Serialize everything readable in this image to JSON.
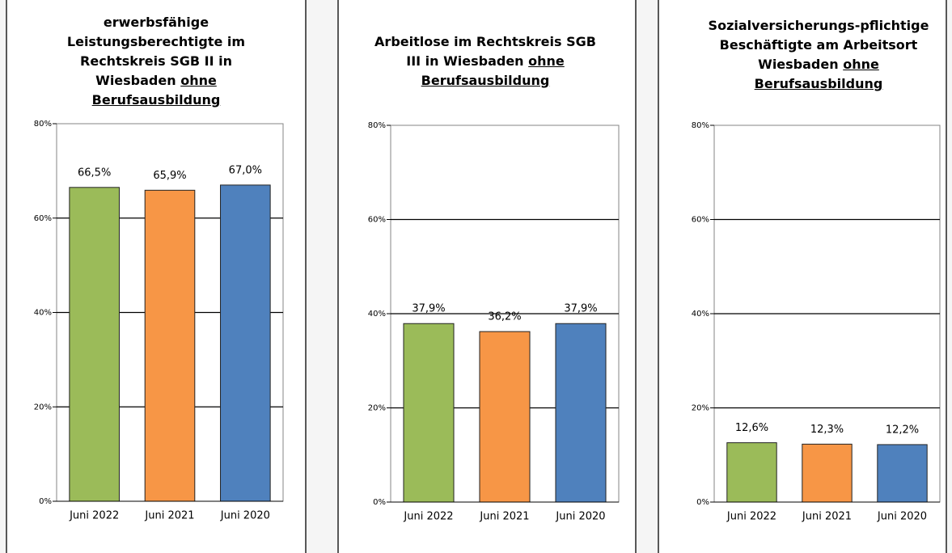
{
  "chart_data": [
    {
      "type": "bar",
      "title": "erwerbsfähige Leistungsberechtigte im Rechtskreis SGB II in Wiesbaden",
      "subtitle": "ohne Berufsausbildung",
      "categories": [
        "Juni 2022",
        "Juni 2021",
        "Juni 2020"
      ],
      "values": [
        66.5,
        65.9,
        67.0
      ],
      "value_labels": [
        "66,5%",
        "65,9%",
        "67,0%"
      ],
      "colors": [
        "#9bbb59",
        "#f79646",
        "#4f81bd"
      ],
      "ylim": [
        0,
        80
      ],
      "yticks": [
        {
          "value": 0,
          "label": "0%"
        },
        {
          "value": 20,
          "label": "20%"
        },
        {
          "value": 40,
          "label": "40%"
        },
        {
          "value": 60,
          "label": "60%"
        },
        {
          "value": 80,
          "label": "80%"
        }
      ],
      "grid": true
    },
    {
      "type": "bar",
      "title": "Arbeitlose im Rechtskreis SGB III in Wiesbaden",
      "subtitle": "ohne Berufsausbildung",
      "categories": [
        "Juni 2022",
        "Juni 2021",
        "Juni 2020"
      ],
      "values": [
        37.9,
        36.2,
        37.9
      ],
      "value_labels": [
        "37,9%",
        "36,2%",
        "37,9%"
      ],
      "colors": [
        "#9bbb59",
        "#f79646",
        "#4f81bd"
      ],
      "ylim": [
        0,
        80
      ],
      "yticks": [
        {
          "value": 0,
          "label": "0%"
        },
        {
          "value": 20,
          "label": "20%"
        },
        {
          "value": 40,
          "label": "40%"
        },
        {
          "value": 60,
          "label": "60%"
        },
        {
          "value": 80,
          "label": "80%"
        }
      ],
      "grid": true
    },
    {
      "type": "bar",
      "title": "Sozialversicherungs-pflichtige Beschäftigte am Arbeitsort Wiesbaden",
      "subtitle": "ohne Berufsausbildung",
      "categories": [
        "Juni 2022",
        "Juni 2021",
        "Juni 2020"
      ],
      "values": [
        12.6,
        12.3,
        12.2
      ],
      "value_labels": [
        "12,6%",
        "12,3%",
        "12,2%"
      ],
      "colors": [
        "#9bbb59",
        "#f79646",
        "#4f81bd"
      ],
      "ylim": [
        0,
        80
      ],
      "yticks": [
        {
          "value": 0,
          "label": "0%"
        },
        {
          "value": 20,
          "label": "20%"
        },
        {
          "value": 40,
          "label": "40%"
        },
        {
          "value": 60,
          "label": "60%"
        },
        {
          "value": 80,
          "label": "80%"
        }
      ],
      "grid": true
    }
  ]
}
